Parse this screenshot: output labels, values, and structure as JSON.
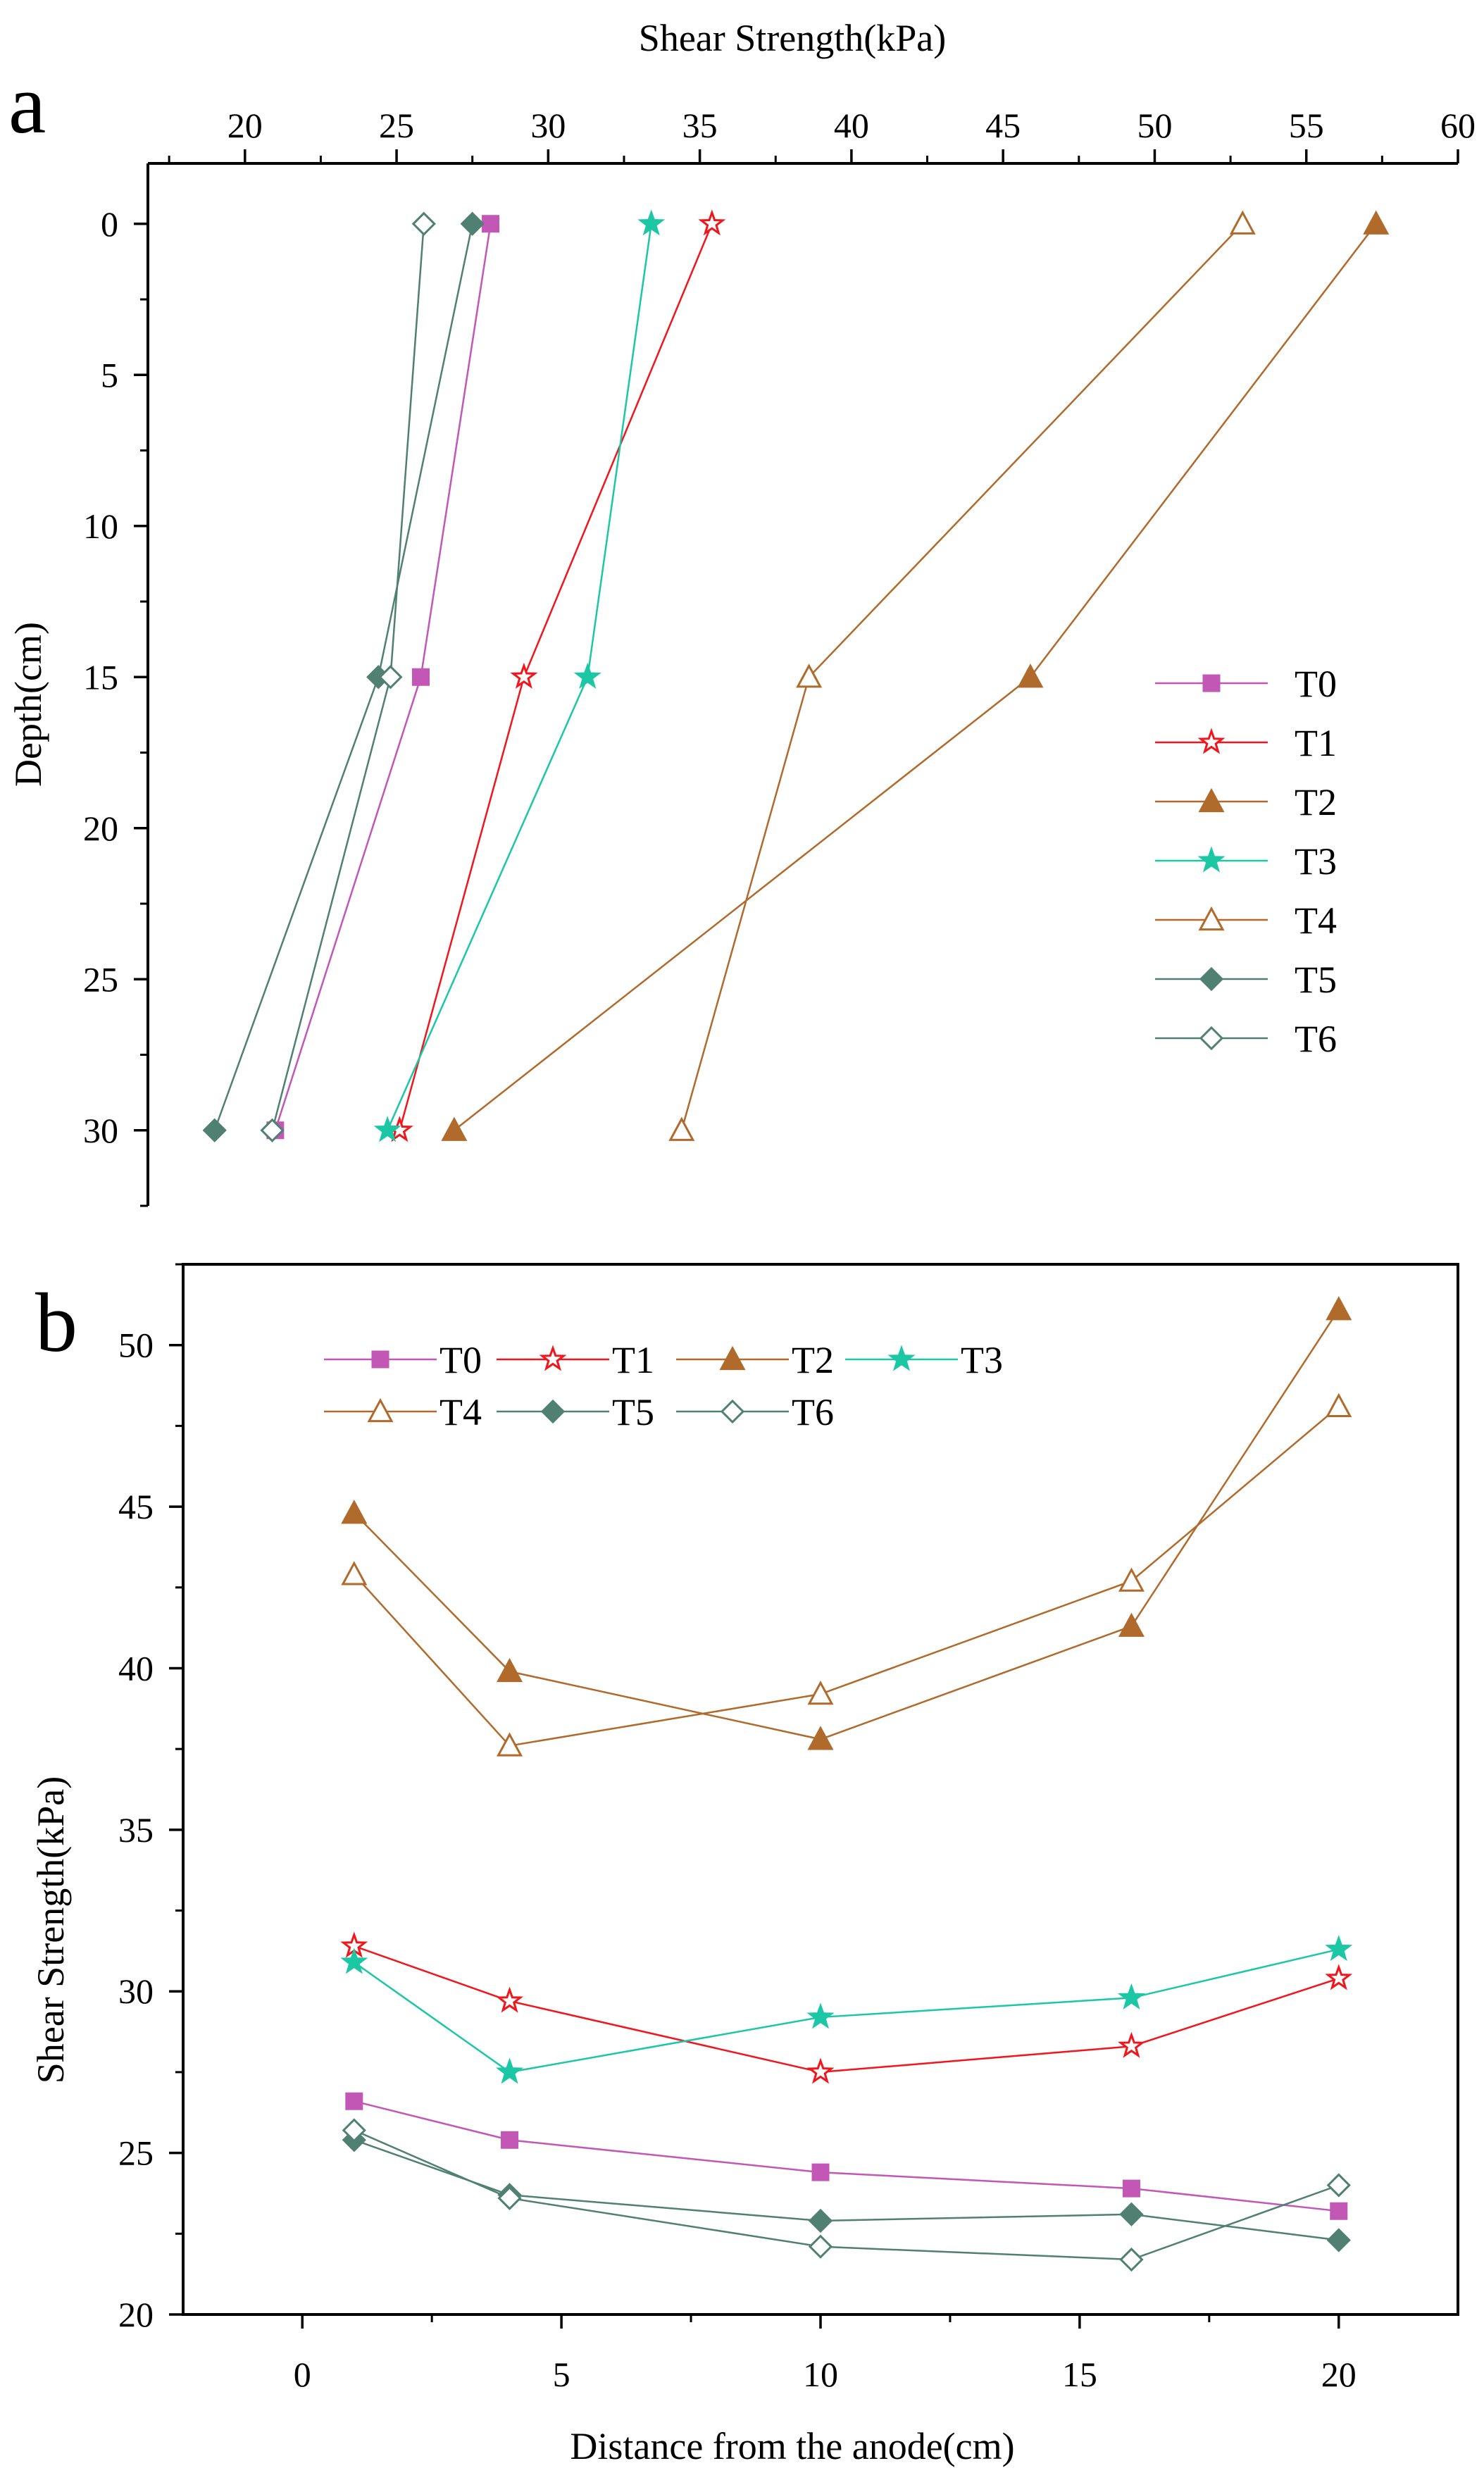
{
  "chart_data": [
    {
      "panel": "a",
      "type": "line",
      "xlabel": "Shear Strength(kPa)",
      "ylabel": "Depth(cm)",
      "x_axis_position": "top",
      "y_inverted": true,
      "xlim": [
        16.8,
        60
      ],
      "ylim": [
        32.5,
        -2
      ],
      "xticks": [
        20,
        25,
        30,
        35,
        40,
        45,
        50,
        55,
        60
      ],
      "yticks": [
        0,
        5,
        10,
        15,
        20,
        25,
        30
      ],
      "legend": "center-right",
      "series": [
        {
          "name": "T0",
          "color": "#C257B5",
          "marker": "square",
          "filled": true,
          "points": [
            [
              28.1,
              0
            ],
            [
              25.8,
              15
            ],
            [
              21.0,
              30
            ]
          ]
        },
        {
          "name": "T1",
          "color": "#F2151B",
          "marker": "star",
          "filled": false,
          "points": [
            [
              35.4,
              0
            ],
            [
              29.2,
              15
            ],
            [
              25.1,
              30
            ]
          ]
        },
        {
          "name": "T2",
          "color": "#B06A2B",
          "marker": "triangle",
          "filled": true,
          "points": [
            [
              57.3,
              0
            ],
            [
              45.9,
              15
            ],
            [
              26.9,
              30
            ]
          ]
        },
        {
          "name": "T3",
          "color": "#1BC7A5",
          "marker": "star",
          "filled": true,
          "points": [
            [
              33.4,
              0
            ],
            [
              31.3,
              15
            ],
            [
              24.7,
              30
            ]
          ]
        },
        {
          "name": "T4",
          "color": "#B06A2B",
          "marker": "triangle",
          "filled": false,
          "points": [
            [
              52.9,
              0
            ],
            [
              38.6,
              15
            ],
            [
              34.4,
              30
            ]
          ]
        },
        {
          "name": "T5",
          "color": "#4F8072",
          "marker": "diamond",
          "filled": true,
          "points": [
            [
              27.5,
              0
            ],
            [
              24.4,
              15
            ],
            [
              19.0,
              30
            ]
          ]
        },
        {
          "name": "T6",
          "color": "#4F8072",
          "marker": "diamond",
          "filled": false,
          "points": [
            [
              25.9,
              0
            ],
            [
              24.8,
              15
            ],
            [
              20.9,
              30
            ]
          ]
        }
      ]
    },
    {
      "panel": "b",
      "type": "line",
      "xlabel": "Distance from the anode(cm)",
      "ylabel": "Shear Strength(kPa)",
      "xlim": [
        -2.3,
        22.3
      ],
      "ylim": [
        20,
        52.5
      ],
      "xticks": [
        0,
        5,
        10,
        15,
        20
      ],
      "yticks": [
        20,
        25,
        30,
        35,
        40,
        45,
        50
      ],
      "legend": "top-left",
      "series": [
        {
          "name": "T0",
          "color": "#C257B5",
          "marker": "square",
          "filled": true,
          "points": [
            [
              1,
              26.6
            ],
            [
              4,
              25.4
            ],
            [
              10,
              24.4
            ],
            [
              16,
              23.9
            ],
            [
              20,
              23.2
            ]
          ]
        },
        {
          "name": "T1",
          "color": "#F2151B",
          "marker": "star",
          "filled": false,
          "points": [
            [
              1,
              31.4
            ],
            [
              4,
              29.7
            ],
            [
              10,
              27.5
            ],
            [
              16,
              28.3
            ],
            [
              20,
              30.4
            ]
          ]
        },
        {
          "name": "T2",
          "color": "#B06A2B",
          "marker": "triangle",
          "filled": true,
          "points": [
            [
              1,
              44.8
            ],
            [
              4,
              39.9
            ],
            [
              10,
              37.8
            ],
            [
              16,
              41.3
            ],
            [
              20,
              51.1
            ]
          ]
        },
        {
          "name": "T3",
          "color": "#1BC7A5",
          "marker": "star",
          "filled": true,
          "points": [
            [
              1,
              30.9
            ],
            [
              4,
              27.5
            ],
            [
              10,
              29.2
            ],
            [
              16,
              29.8
            ],
            [
              20,
              31.3
            ]
          ]
        },
        {
          "name": "T4",
          "color": "#B06A2B",
          "marker": "triangle",
          "filled": false,
          "points": [
            [
              1,
              42.9
            ],
            [
              4,
              37.6
            ],
            [
              10,
              39.2
            ],
            [
              16,
              42.7
            ],
            [
              20,
              48.1
            ]
          ]
        },
        {
          "name": "T5",
          "color": "#4F8072",
          "marker": "diamond",
          "filled": true,
          "points": [
            [
              1,
              25.4
            ],
            [
              4,
              23.7
            ],
            [
              10,
              22.9
            ],
            [
              16,
              23.1
            ],
            [
              20,
              22.3
            ]
          ]
        },
        {
          "name": "T6",
          "color": "#4F8072",
          "marker": "diamond",
          "filled": false,
          "points": [
            [
              1,
              25.7
            ],
            [
              4,
              23.6
            ],
            [
              10,
              22.1
            ],
            [
              16,
              21.7
            ],
            [
              20,
              24.0
            ]
          ]
        }
      ]
    }
  ]
}
